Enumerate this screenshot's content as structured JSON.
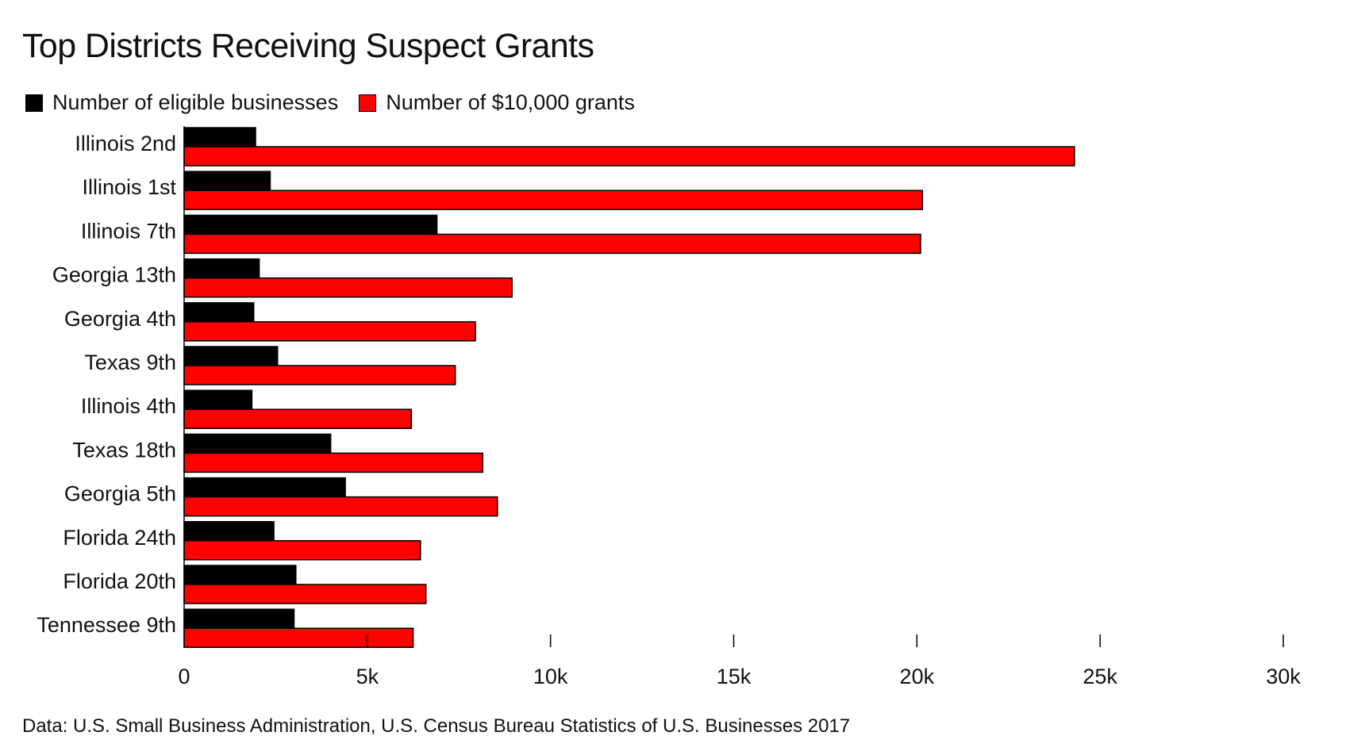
{
  "chart_data": {
    "type": "bar",
    "orientation": "horizontal",
    "title": "Top Districts Receiving Suspect Grants",
    "source": "Data: U.S. Small Business Administration, U.S. Census Bureau Statistics of U.S. Businesses 2017",
    "categories": [
      "Illinois 2nd",
      "Illinois 1st",
      "Illinois 7th",
      "Georgia 13th",
      "Georgia 4th",
      "Texas 9th",
      "Illinois 4th",
      "Texas 18th",
      "Georgia 5th",
      "Florida 24th",
      "Florida 20th",
      "Tennessee 9th"
    ],
    "series": [
      {
        "name": "Number of eligible businesses",
        "color": "#000000",
        "values": [
          1950,
          2350,
          6900,
          2050,
          1900,
          2550,
          1850,
          4000,
          4400,
          2450,
          3050,
          3000
        ]
      },
      {
        "name": "Number of $10,000 grants",
        "color": "#ff0000",
        "values": [
          24300,
          20150,
          20100,
          8950,
          7950,
          7400,
          6200,
          8150,
          8550,
          6450,
          6600,
          6250
        ]
      }
    ],
    "xlim": [
      0,
      30000
    ],
    "xticks": [
      0,
      5000,
      10000,
      15000,
      20000,
      25000,
      30000
    ],
    "xtick_labels": [
      "0",
      "5k",
      "10k",
      "15k",
      "20k",
      "25k",
      "30k"
    ],
    "legend_position": "top-left",
    "grid": false
  }
}
